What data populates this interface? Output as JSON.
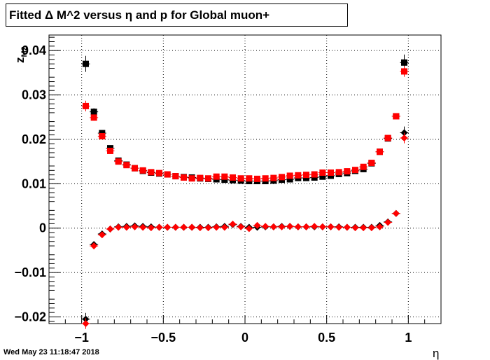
{
  "title": "Fitted Δ M^2 versus η and p for Global muon+",
  "footer": "Wed May 23 11:18:47 2018",
  "chart_data": {
    "type": "scatter",
    "title": "Fitted Δ M^2 versus η and p for Global muon+",
    "xlabel": "η",
    "ylabel": "z",
    "ylabel_subscript": "M2",
    "xlim": [
      -1.2,
      1.2
    ],
    "ylim": [
      -0.0215,
      0.0435
    ],
    "grid": true,
    "x_ticks": [
      -1,
      -0.5,
      0,
      0.5,
      1
    ],
    "x_tick_labels": [
      "−1",
      "−0.5",
      "0",
      "0.5",
      "1"
    ],
    "y_ticks": [
      -0.02,
      -0.01,
      0,
      0.01,
      0.02,
      0.03,
      0.04
    ],
    "y_tick_labels": [
      "−0.02",
      "−0.01",
      "0",
      "0.01",
      "0.02",
      "0.03",
      "0.04"
    ],
    "x": [
      -0.975,
      -0.925,
      -0.875,
      -0.825,
      -0.775,
      -0.725,
      -0.675,
      -0.625,
      -0.575,
      -0.525,
      -0.475,
      -0.425,
      -0.375,
      -0.325,
      -0.275,
      -0.225,
      -0.175,
      -0.125,
      -0.075,
      -0.025,
      0.025,
      0.075,
      0.125,
      0.175,
      0.225,
      0.275,
      0.325,
      0.375,
      0.425,
      0.475,
      0.525,
      0.575,
      0.625,
      0.675,
      0.725,
      0.775,
      0.825,
      0.875,
      0.925,
      0.975
    ],
    "series": [
      {
        "marker": "square",
        "color": "#000000",
        "values": [
          0.037,
          0.0262,
          0.0214,
          0.018,
          0.0152,
          0.0143,
          0.0135,
          0.0129,
          0.0125,
          0.0123,
          0.0121,
          0.0117,
          0.0115,
          0.0114,
          0.0112,
          0.0111,
          0.011,
          0.0109,
          0.0108,
          0.0107,
          0.0106,
          0.0106,
          0.0106,
          0.0107,
          0.0109,
          0.011,
          0.0113,
          0.0113,
          0.0114,
          0.0116,
          0.0118,
          0.0122,
          0.0124,
          0.0129,
          0.0133,
          0.0146,
          0.0172,
          0.0202,
          0.0252,
          0.0373
        ],
        "errors": [
          0.0018,
          0.0008,
          0.0006,
          0.0005,
          0.0004,
          0.0003,
          0.0003,
          0.0002,
          0.0002,
          0.0002,
          0.0002,
          0.0002,
          0.0002,
          0.0002,
          0.0002,
          0.0002,
          0.0002,
          0.0002,
          0.0002,
          0.0002,
          0.0002,
          0.0002,
          0.0002,
          0.0002,
          0.0002,
          0.0002,
          0.0002,
          0.0002,
          0.0002,
          0.0002,
          0.0002,
          0.0002,
          0.0002,
          0.0002,
          0.0003,
          0.0003,
          0.0004,
          0.0005,
          0.0006,
          0.0018
        ]
      },
      {
        "marker": "square",
        "color": "#ff0000",
        "values": [
          0.0275,
          0.0249,
          0.0207,
          0.0174,
          0.015,
          0.0142,
          0.0135,
          0.013,
          0.0126,
          0.0124,
          0.0121,
          0.0117,
          0.0114,
          0.0112,
          0.0113,
          0.0112,
          0.0116,
          0.0116,
          0.0114,
          0.0112,
          0.0112,
          0.0111,
          0.0112,
          0.0113,
          0.0115,
          0.0118,
          0.0119,
          0.012,
          0.0121,
          0.0125,
          0.0125,
          0.0126,
          0.0128,
          0.0131,
          0.0138,
          0.0147,
          0.0172,
          0.0203,
          0.0252,
          0.0353
        ],
        "errors": [
          0.0012,
          0.0007,
          0.0005,
          0.0004,
          0.0003,
          0.0003,
          0.0002,
          0.0002,
          0.0002,
          0.0002,
          0.0002,
          0.0002,
          0.0002,
          0.0002,
          0.0002,
          0.0002,
          0.0002,
          0.0002,
          0.0002,
          0.0002,
          0.0002,
          0.0002,
          0.0002,
          0.0002,
          0.0002,
          0.0002,
          0.0002,
          0.0002,
          0.0002,
          0.0002,
          0.0002,
          0.0002,
          0.0002,
          0.0002,
          0.0002,
          0.0003,
          0.0004,
          0.0005,
          0.0006,
          0.0012
        ]
      },
      {
        "marker": "diamond",
        "color": "#000000",
        "values": [
          -0.0205,
          -0.0037,
          -0.0013,
          -0.0002,
          0.0003,
          0.0004,
          0.0005,
          0.0004,
          0.0003,
          0.0002,
          0.0002,
          0.0002,
          0.0002,
          0.0002,
          0.0002,
          0.0002,
          0.0003,
          0.0004,
          0.0008,
          0.0004,
          0.0002,
          0.0002,
          0.0003,
          0.0003,
          0.0004,
          0.0004,
          0.0003,
          0.0003,
          0.0003,
          0.0003,
          0.0003,
          0.0003,
          0.0002,
          0.0002,
          0.0002,
          0.0002,
          0.0006,
          0.0014,
          0.0033,
          0.0215
        ],
        "errors": [
          0.0014,
          0.0005,
          0.0004,
          0.0002,
          0.0002,
          0.0002,
          0.0002,
          0.0002,
          0.0002,
          0.0002,
          0.0002,
          0.0002,
          0.0002,
          0.0002,
          0.0002,
          0.0002,
          0.0002,
          0.0002,
          0.0002,
          0.0002,
          0.0002,
          0.0002,
          0.0002,
          0.0002,
          0.0002,
          0.0002,
          0.0002,
          0.0002,
          0.0002,
          0.0002,
          0.0002,
          0.0002,
          0.0002,
          0.0002,
          0.0002,
          0.0002,
          0.0003,
          0.0004,
          0.0005,
          0.0014
        ]
      },
      {
        "marker": "diamond",
        "color": "#ff0000",
        "values": [
          -0.0215,
          -0.004,
          -0.0015,
          -0.0002,
          0.0002,
          0.0002,
          0.0003,
          0.0002,
          0.0001,
          0.0002,
          0.0002,
          0.0002,
          0.0002,
          0.0002,
          0.0001,
          0.0001,
          0.0002,
          0.0002,
          0.0009,
          0.0003,
          -0.0001,
          0.0006,
          0.0004,
          0.0003,
          0.0003,
          0.0004,
          0.0003,
          0.0003,
          0.0004,
          0.0003,
          0.0003,
          0.0002,
          0.0002,
          0.0001,
          0.0001,
          0.0001,
          0.0003,
          0.0013,
          0.0033,
          0.0203
        ],
        "errors": [
          0.0012,
          0.0005,
          0.0004,
          0.0002,
          0.0002,
          0.0002,
          0.0002,
          0.0002,
          0.0002,
          0.0002,
          0.0002,
          0.0002,
          0.0002,
          0.0002,
          0.0002,
          0.0002,
          0.0002,
          0.0002,
          0.0002,
          0.0002,
          0.0002,
          0.0002,
          0.0002,
          0.0002,
          0.0002,
          0.0002,
          0.0002,
          0.0002,
          0.0002,
          0.0002,
          0.0002,
          0.0002,
          0.0002,
          0.0002,
          0.0002,
          0.0002,
          0.0003,
          0.0004,
          0.0005,
          0.0012
        ]
      }
    ]
  }
}
